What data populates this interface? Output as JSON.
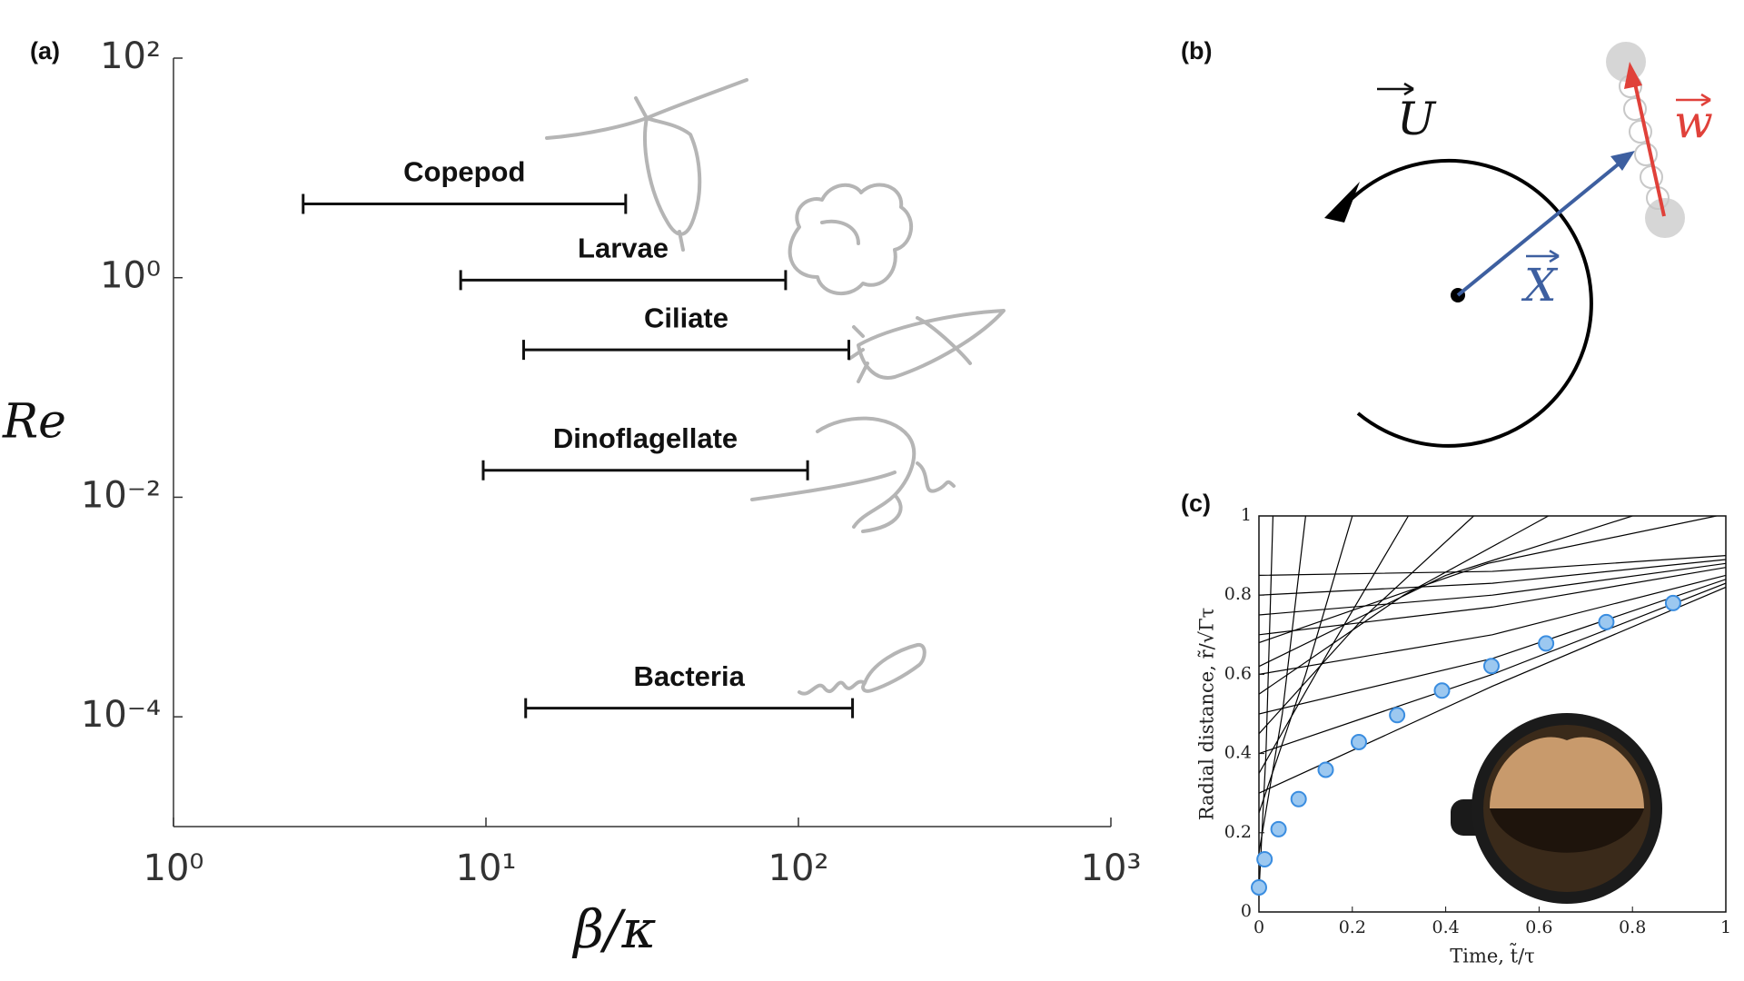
{
  "chart_data": [
    {
      "type": "range",
      "panel_label": "(a)",
      "xlabel": "β/κ",
      "ylabel": "Re",
      "categories": [
        "Copepod",
        "Larvae",
        "Ciliate",
        "Dinoflagellate",
        "Bacteria"
      ],
      "values": [
        4.7,
        0.95,
        0.22,
        0.0176,
        0.00012
      ],
      "x_low": [
        2.6,
        8.3,
        13.2,
        9.8,
        13.4
      ],
      "x_high": [
        28,
        91,
        145,
        107,
        149
      ],
      "color": "#111111",
      "log_x": true,
      "log_y": true,
      "xlim": [
        1,
        1000
      ],
      "ylim": [
        1e-05,
        100
      ],
      "xticks": [
        {
          "value": 1,
          "label": "10⁰"
        },
        {
          "value": 10,
          "label": "10¹"
        },
        {
          "value": 100,
          "label": "10²"
        },
        {
          "value": 1000,
          "label": "10³"
        }
      ],
      "yticks": [
        {
          "value": 0.0001,
          "label": "10⁻⁴"
        },
        {
          "value": 0.01,
          "label": "10⁻²"
        },
        {
          "value": 1,
          "label": "10⁰"
        },
        {
          "value": 100,
          "label": "10²"
        }
      ]
    },
    {
      "type": "scatter",
      "panel_label": "(c)",
      "xlabel": "Time, t̃/τ",
      "ylabel": "Radial distance, r̃/√Γτ",
      "xlim": [
        0,
        1
      ],
      "ylim": [
        0,
        1
      ],
      "xticks": [
        0,
        0.2,
        0.4,
        0.6,
        0.8,
        1
      ],
      "yticks": [
        0,
        0.2,
        0.4,
        0.6,
        0.8,
        1
      ],
      "series": [
        {
          "color": "#9cc8f0",
          "edge_color": "#3a8de0",
          "x": [
            0.0,
            0.012,
            0.042,
            0.085,
            0.143,
            0.214,
            0.296,
            0.392,
            0.498,
            0.615,
            0.744,
            0.887
          ],
          "values": [
            0.062,
            0.133,
            0.209,
            0.285,
            0.359,
            0.429,
            0.497,
            0.559,
            0.621,
            0.678,
            0.732,
            0.78
          ]
        }
      ],
      "curve_color": "#000000",
      "curves": [
        {
          "x": [
            0,
            0.5,
            1
          ],
          "values": [
            0.85,
            0.86,
            0.9
          ]
        },
        {
          "x": [
            0,
            0.5,
            1
          ],
          "values": [
            0.8,
            0.83,
            0.89
          ]
        },
        {
          "x": [
            0,
            0.5,
            1
          ],
          "values": [
            0.75,
            0.8,
            0.88
          ]
        },
        {
          "x": [
            0,
            0.5,
            1
          ],
          "values": [
            0.7,
            0.77,
            0.87
          ]
        },
        {
          "x": [
            0,
            0.5,
            1
          ],
          "values": [
            0.6,
            0.7,
            0.85
          ]
        },
        {
          "x": [
            0,
            0.5,
            1
          ],
          "values": [
            0.5,
            0.64,
            0.84
          ]
        },
        {
          "x": [
            0,
            0.5,
            1
          ],
          "values": [
            0.4,
            0.6,
            0.83
          ]
        },
        {
          "x": [
            0,
            0.5,
            1
          ],
          "values": [
            0.3,
            0.57,
            0.82
          ]
        },
        {
          "x": [
            0,
            0.015,
            0.03
          ],
          "values": [
            0.05,
            0.4,
            1
          ]
        },
        {
          "x": [
            0,
            0.05,
            0.1
          ],
          "values": [
            0.15,
            0.5,
            1
          ]
        },
        {
          "x": [
            0,
            0.1,
            0.2
          ],
          "values": [
            0.25,
            0.6,
            1
          ]
        },
        {
          "x": [
            0,
            0.16,
            0.32
          ],
          "values": [
            0.35,
            0.68,
            1
          ]
        },
        {
          "x": [
            0,
            0.23,
            0.46
          ],
          "values": [
            0.45,
            0.75,
            1
          ]
        },
        {
          "x": [
            0,
            0.31,
            0.62
          ],
          "values": [
            0.55,
            0.8,
            1
          ]
        },
        {
          "x": [
            0,
            0.4,
            0.8
          ],
          "values": [
            0.62,
            0.85,
            1
          ]
        },
        {
          "x": [
            0,
            0.49,
            0.98
          ],
          "values": [
            0.68,
            0.88,
            1
          ]
        }
      ]
    }
  ],
  "diagram": {
    "panel_label": "(b)",
    "labels": {
      "U": "U",
      "X": "X",
      "w": "w"
    }
  }
}
